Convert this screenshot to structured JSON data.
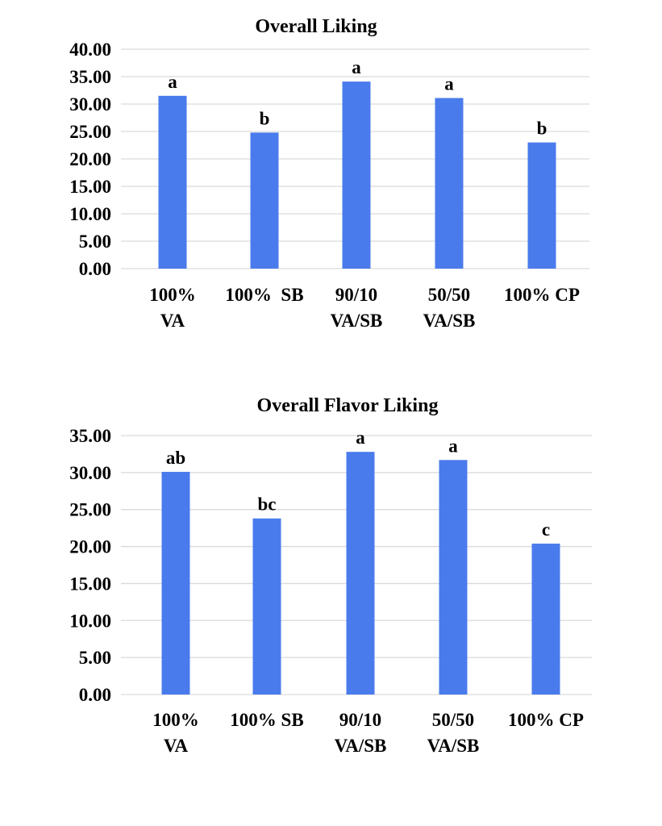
{
  "chart_data": [
    {
      "type": "bar",
      "title": "Overall Liking",
      "categories": [
        [
          "100%",
          "VA"
        ],
        [
          "100%  SB"
        ],
        [
          "90/10",
          "VA/SB"
        ],
        [
          "50/50",
          "VA/SB"
        ],
        [
          "100% CP"
        ]
      ],
      "values": [
        31.5,
        24.8,
        34.1,
        31.1,
        23.0
      ],
      "significance_letters": [
        "a",
        "b",
        "a",
        "a",
        "b"
      ],
      "yticks": [
        "0.00",
        "5.00",
        "10.00",
        "15.00",
        "20.00",
        "25.00",
        "30.00",
        "35.00",
        "40.00"
      ],
      "ylim": [
        0,
        40
      ],
      "grid": true,
      "bar_color": "#4a7bec",
      "xlabel": "",
      "ylabel": ""
    },
    {
      "type": "bar",
      "title": "Overall Flavor Liking",
      "categories": [
        [
          "100%",
          "VA"
        ],
        [
          "100% SB"
        ],
        [
          "90/10",
          "VA/SB"
        ],
        [
          "50/50",
          "VA/SB"
        ],
        [
          "100% CP"
        ]
      ],
      "values": [
        30.1,
        23.8,
        32.8,
        31.7,
        20.4
      ],
      "significance_letters": [
        "ab",
        "bc",
        "a",
        "a",
        "c"
      ],
      "yticks": [
        "0.00",
        "5.00",
        "10.00",
        "15.00",
        "20.00",
        "25.00",
        "30.00",
        "35.00"
      ],
      "ylim": [
        0,
        35
      ],
      "grid": true,
      "bar_color": "#4a7bec",
      "xlabel": "",
      "ylabel": ""
    }
  ]
}
